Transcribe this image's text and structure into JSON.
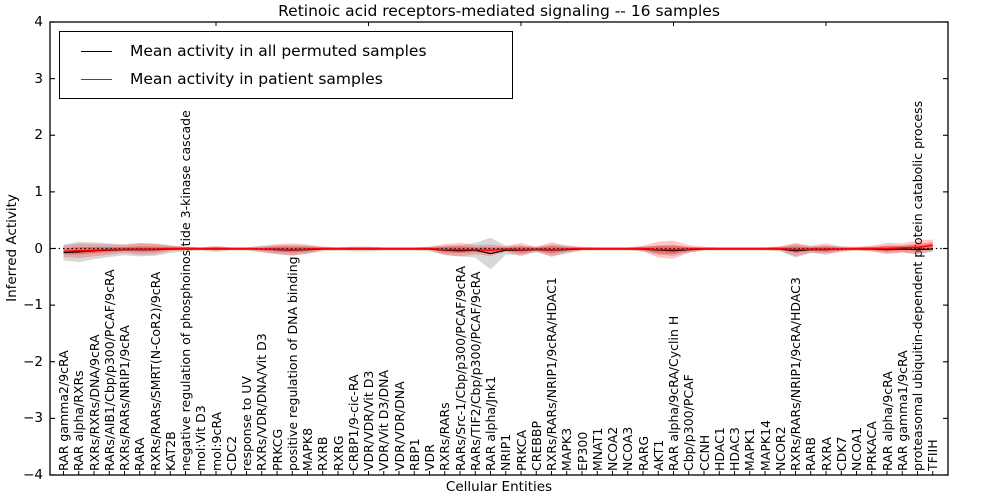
{
  "chart_data": {
    "type": "line",
    "title": "Retinoic acid receptors-mediated signaling -- 16 samples",
    "xlabel": "Cellular Entities",
    "ylabel": "Inferred Activity",
    "ylim": [
      -4,
      4
    ],
    "yticks": [
      "4",
      "3",
      "2",
      "1",
      "0",
      "−1",
      "−2",
      "−3",
      "−4"
    ],
    "zero_line_style": "dotted",
    "legend_position": "upper-left",
    "grid": false,
    "categories": [
      "RAR gamma2/9cRA",
      "RAR alpha/RXRs",
      "RXRs/RXRs/DNA/9cRA",
      "RARs/AIB1/Cbp/p300/PCAF/9cRA",
      "RXRs/RARs/NRIP1/9cRA",
      "RARA",
      "RXRs/RARs/SMRT(N-CoR2)/9cRA",
      "KAT2B",
      "negative regulation of phosphoinositide 3-kinase cascade",
      "mol:Vit D3",
      "mol:9cRA",
      "CDC2",
      "response to UV",
      "RXRs/VDR/DNA/Vit D3",
      "PRKCG",
      "positive regulation of DNA binding",
      "MAPK8",
      "RXRB",
      "RXRG",
      "CRBP1/9-cic-RA",
      "VDR/VDR/Vit D3",
      "VDR/Vit D3/DNA",
      "VDR/VDR/DNA",
      "RBP1",
      "VDR",
      "RXRs/RARs",
      "RARs/Src-1/Cbp/p300/PCAF/9cRA",
      "RARs/TIF2/Cbp/p300/PCAF/9cRA",
      "RAR alpha/Jnk1",
      "NRIP1",
      "PRKCA",
      "CREBBP",
      "RXRs/RARs/NRIP1/9cRA/HDAC1",
      "MAPK3",
      "EP300",
      "MNAT1",
      "NCOA2",
      "NCOA3",
      "RARG",
      "AKT1",
      "RAR alpha/9cRA/Cyclin H",
      "Cbp/p300/PCAF",
      "CCNH",
      "HDAC1",
      "HDAC3",
      "MAPK1",
      "MAPK14",
      "NCOR2",
      "RXRs/RARs/NRIP1/9cRA/HDAC3",
      "RARB",
      "RXRA",
      "CDK7",
      "NCOA1",
      "PRKACA",
      "RAR alpha/9cRA",
      "RAR gamma1/9cRA",
      "proteasomal ubiquitin-dependent protein catabolic process",
      "TFIIH"
    ],
    "series": [
      {
        "name": "Mean activity in all permuted samples",
        "color": "#000000",
        "band_color": "#999999",
        "values": [
          -0.07,
          -0.06,
          -0.04,
          -0.03,
          -0.02,
          -0.02,
          -0.02,
          -0.01,
          -0.01,
          -0.01,
          -0.01,
          -0.01,
          -0.01,
          -0.01,
          -0.02,
          -0.03,
          -0.02,
          -0.01,
          -0.01,
          -0.01,
          -0.01,
          -0.01,
          -0.01,
          -0.01,
          -0.01,
          -0.03,
          -0.04,
          -0.03,
          -0.09,
          -0.03,
          -0.03,
          -0.02,
          -0.03,
          -0.02,
          -0.01,
          -0.01,
          -0.01,
          -0.01,
          -0.01,
          -0.03,
          -0.04,
          -0.02,
          -0.01,
          -0.01,
          -0.01,
          -0.01,
          -0.01,
          -0.01,
          -0.04,
          -0.02,
          -0.02,
          -0.01,
          -0.01,
          -0.01,
          -0.02,
          -0.01,
          -0.02,
          -0.01
        ],
        "band_halfwidths": [
          0.14,
          0.18,
          0.15,
          0.12,
          0.1,
          0.12,
          0.11,
          0.07,
          0.04,
          0.03,
          0.05,
          0.03,
          0.03,
          0.06,
          0.08,
          0.09,
          0.07,
          0.04,
          0.03,
          0.04,
          0.04,
          0.03,
          0.03,
          0.03,
          0.04,
          0.08,
          0.1,
          0.13,
          0.28,
          0.08,
          0.08,
          0.05,
          0.1,
          0.07,
          0.03,
          0.03,
          0.03,
          0.03,
          0.04,
          0.08,
          0.09,
          0.05,
          0.03,
          0.03,
          0.03,
          0.03,
          0.03,
          0.04,
          0.12,
          0.06,
          0.07,
          0.04,
          0.03,
          0.04,
          0.06,
          0.06,
          0.08,
          0.05
        ]
      },
      {
        "name": "Mean activity in patient samples",
        "color": "#ff0000",
        "band_color": "#ff0000",
        "values": [
          -0.05,
          -0.04,
          -0.03,
          -0.02,
          -0.01,
          -0.01,
          -0.01,
          0,
          0,
          0,
          0,
          0,
          0,
          -0.01,
          -0.01,
          -0.02,
          -0.01,
          0,
          0,
          0,
          0,
          0,
          0,
          0,
          0,
          -0.02,
          -0.02,
          -0.02,
          -0.03,
          -0.01,
          -0.02,
          -0.01,
          -0.02,
          -0.01,
          0,
          0,
          0,
          0,
          0,
          -0.02,
          -0.02,
          -0.01,
          0,
          0,
          0,
          0,
          0,
          0,
          -0.02,
          -0.01,
          -0.01,
          -0.01,
          0,
          0,
          0,
          0.01,
          0.02,
          0.06
        ],
        "band_halfwidths": [
          0.1,
          0.13,
          0.11,
          0.09,
          0.07,
          0.1,
          0.09,
          0.05,
          0.03,
          0.02,
          0.04,
          0.02,
          0.02,
          0.05,
          0.09,
          0.11,
          0.08,
          0.03,
          0.02,
          0.03,
          0.03,
          0.02,
          0.02,
          0.02,
          0.03,
          0.1,
          0.12,
          0.08,
          0.1,
          0.05,
          0.12,
          0.04,
          0.13,
          0.06,
          0.03,
          0.02,
          0.02,
          0.02,
          0.05,
          0.14,
          0.16,
          0.07,
          0.03,
          0.02,
          0.02,
          0.02,
          0.02,
          0.04,
          0.12,
          0.06,
          0.1,
          0.05,
          0.03,
          0.05,
          0.1,
          0.08,
          0.12,
          0.1
        ]
      }
    ]
  }
}
